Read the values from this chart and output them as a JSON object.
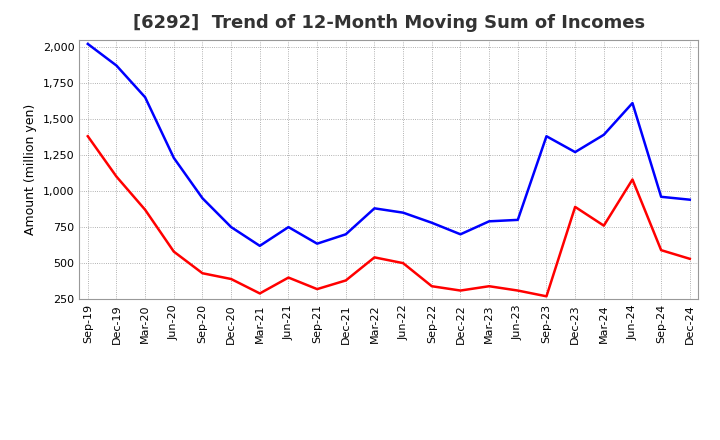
{
  "title": "[6292]  Trend of 12-Month Moving Sum of Incomes",
  "ylabel": "Amount (million yen)",
  "x_labels": [
    "Sep-19",
    "Dec-19",
    "Mar-20",
    "Jun-20",
    "Sep-20",
    "Dec-20",
    "Mar-21",
    "Jun-21",
    "Sep-21",
    "Dec-21",
    "Mar-22",
    "Jun-22",
    "Sep-22",
    "Dec-22",
    "Mar-23",
    "Jun-23",
    "Sep-23",
    "Dec-23",
    "Mar-24",
    "Jun-24",
    "Sep-24",
    "Dec-24"
  ],
  "ordinary_income": [
    2020,
    1870,
    1650,
    1230,
    950,
    750,
    620,
    750,
    635,
    700,
    880,
    850,
    780,
    700,
    790,
    800,
    1380,
    1270,
    1390,
    1610,
    960,
    940
  ],
  "net_income": [
    1380,
    1100,
    870,
    580,
    430,
    390,
    290,
    400,
    320,
    380,
    540,
    500,
    340,
    310,
    340,
    310,
    270,
    890,
    760,
    1080,
    590,
    530
  ],
  "ordinary_income_color": "#0000FF",
  "net_income_color": "#FF0000",
  "ylim_min": 250,
  "ylim_max": 2050,
  "yticks": [
    250,
    500,
    750,
    1000,
    1250,
    1500,
    1750,
    2000
  ],
  "background_color": "#FFFFFF",
  "grid_color": "#999999",
  "title_fontsize": 13,
  "title_color": "#333333",
  "ylabel_fontsize": 9,
  "tick_fontsize": 8,
  "legend_fontsize": 10,
  "line_width": 1.8
}
